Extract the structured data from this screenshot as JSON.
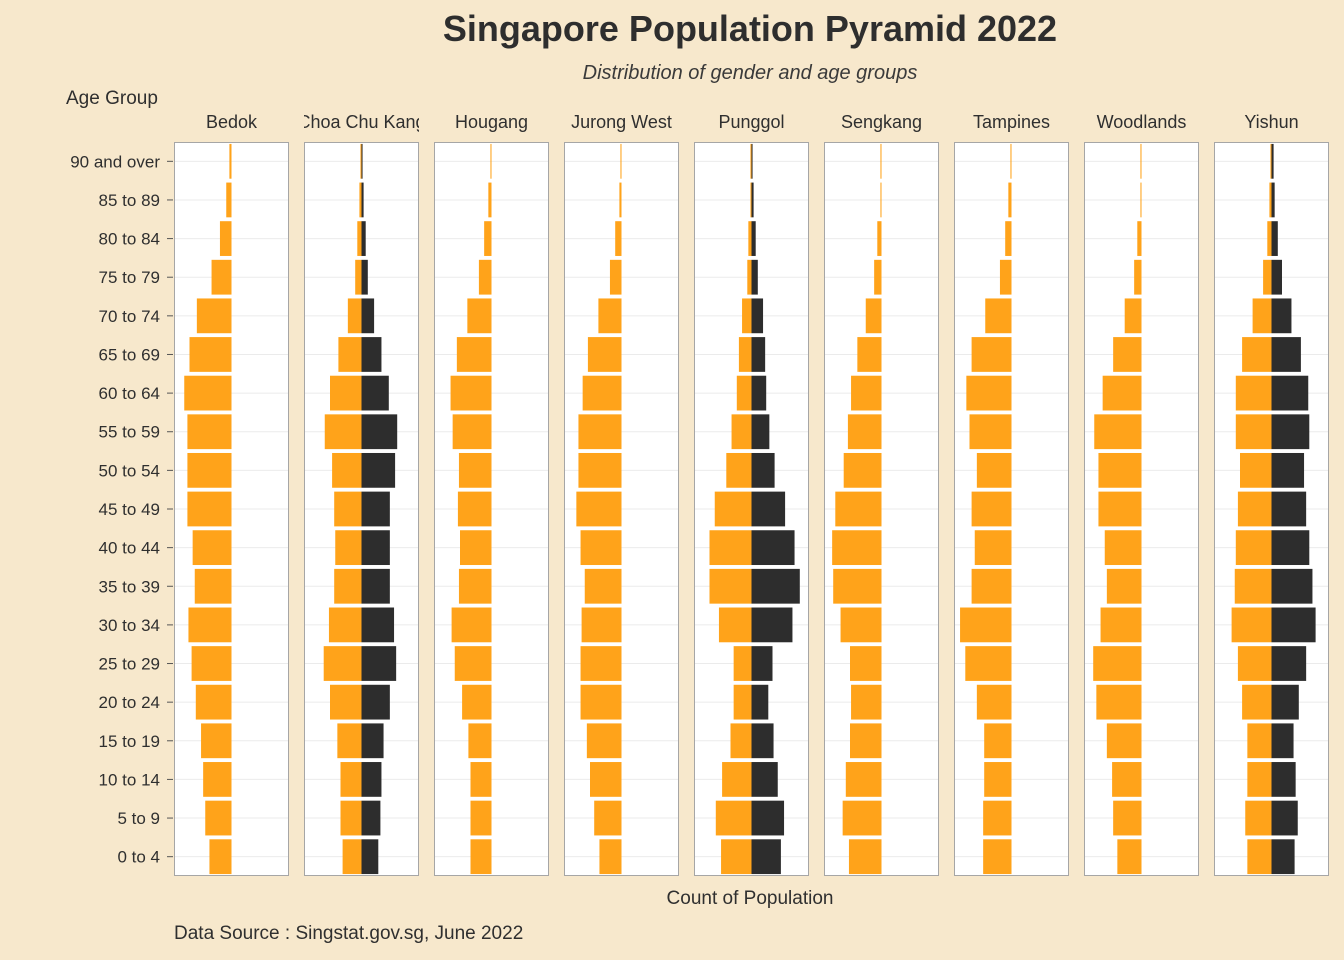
{
  "title": "Singapore Population Pyramid 2022",
  "subtitle": "Distribution of gender and age groups",
  "y_axis_label": "Age Group",
  "x_axis_label": "Count of Population",
  "caption": "Data Source : Singstat.gov.sg, June 2022",
  "colors": {
    "background": "#f7e8cc",
    "female": "#ffa31a",
    "male": "#2d2d2d",
    "panel": "#ffffff",
    "grid": "#ebebeb",
    "panel_border": "#a6a6a6"
  },
  "chart_data": {
    "type": "bar",
    "orientation": "horizontal",
    "facet_type": "population-pyramid",
    "age_groups": [
      "0 to 4",
      "5 to 9",
      "10 to 14",
      "15 to 19",
      "20 to 24",
      "25 to 29",
      "30 to 34",
      "35 to 39",
      "40 to 44",
      "45 to 49",
      "50 to 54",
      "55 to 59",
      "60 to 64",
      "65 to 69",
      "70 to 74",
      "75 to 79",
      "80 to 84",
      "85 to 89",
      "90 and over"
    ],
    "value_unit": "relative bar length (0-100 scale, estimated)",
    "grid": "horizontal",
    "facets": [
      {
        "name": "Bedok",
        "female": [
          21,
          25,
          27,
          29,
          34,
          38,
          41,
          35,
          37,
          42,
          42,
          42,
          45,
          40,
          33,
          19,
          11,
          5,
          2
        ],
        "male": [
          0,
          0,
          0,
          0,
          0,
          0,
          0,
          0,
          0,
          0,
          0,
          0,
          0,
          0,
          0,
          0,
          0,
          0,
          0
        ]
      },
      {
        "name": "Choa Chu Kang",
        "female": [
          18,
          20,
          20,
          23,
          30,
          36,
          31,
          26,
          25,
          26,
          28,
          35,
          30,
          22,
          13,
          6,
          4,
          2,
          1
        ],
        "male": [
          16,
          18,
          19,
          21,
          27,
          33,
          31,
          27,
          27,
          27,
          32,
          34,
          26,
          19,
          12,
          6,
          4,
          2,
          1
        ]
      },
      {
        "name": "Hougang",
        "female": [
          20,
          20,
          20,
          22,
          28,
          35,
          38,
          31,
          30,
          32,
          31,
          37,
          39,
          33,
          23,
          12,
          7,
          3,
          1
        ]
      },
      {
        "name": "Jurong West",
        "female": [
          21,
          26,
          30,
          33,
          39,
          39,
          38,
          35,
          39,
          43,
          41,
          41,
          37,
          32,
          22,
          11,
          6,
          2,
          1
        ]
      },
      {
        "name": "Punggol",
        "female": [
          29,
          34,
          28,
          20,
          17,
          17,
          31,
          40,
          40,
          35,
          24,
          19,
          14,
          12,
          9,
          4,
          3,
          1,
          1
        ],
        "male": [
          28,
          31,
          25,
          21,
          16,
          20,
          39,
          46,
          41,
          32,
          22,
          17,
          14,
          13,
          11,
          6,
          4,
          2,
          1
        ]
      },
      {
        "name": "Sengkang",
        "female": [
          31,
          37,
          34,
          30,
          29,
          30,
          39,
          46,
          47,
          44,
          36,
          32,
          29,
          23,
          15,
          7,
          4,
          1,
          1
        ]
      },
      {
        "name": "Tampines",
        "female": [
          27,
          27,
          26,
          26,
          33,
          44,
          49,
          38,
          35,
          38,
          33,
          40,
          43,
          38,
          25,
          11,
          6,
          3,
          1
        ]
      },
      {
        "name": "Woodlands",
        "female": [
          23,
          27,
          28,
          33,
          43,
          46,
          39,
          33,
          35,
          41,
          41,
          45,
          37,
          27,
          16,
          7,
          4,
          1,
          1
        ]
      },
      {
        "name": "Yishun",
        "female": [
          23,
          25,
          23,
          23,
          28,
          32,
          38,
          35,
          34,
          32,
          30,
          34,
          34,
          28,
          18,
          8,
          4,
          2,
          1
        ],
        "male": [
          22,
          25,
          23,
          21,
          26,
          33,
          42,
          39,
          36,
          33,
          31,
          36,
          35,
          28,
          19,
          10,
          6,
          3,
          2
        ]
      }
    ]
  }
}
